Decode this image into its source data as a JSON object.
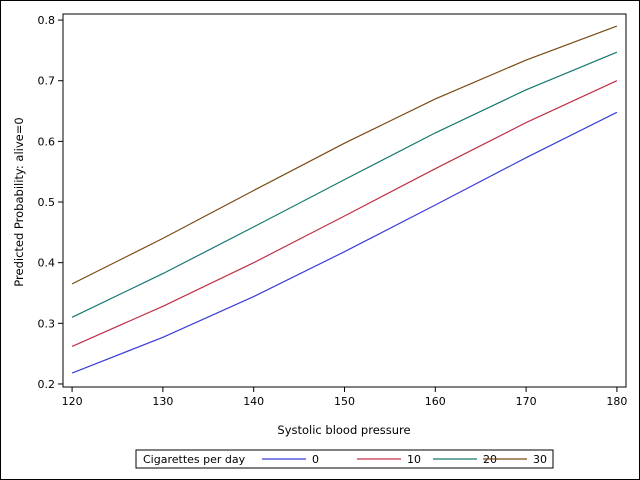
{
  "chart_data": {
    "type": "line",
    "title": "",
    "xlabel": "Systolic blood pressure",
    "ylabel": "Predicted Probability: alive=0",
    "xlim": [
      119,
      181
    ],
    "ylim": [
      0.195,
      0.81
    ],
    "xticks": [
      "120",
      "130",
      "140",
      "150",
      "160",
      "170",
      "180"
    ],
    "yticks": [
      "0.2",
      "0.3",
      "0.4",
      "0.5",
      "0.6",
      "0.7",
      "0.8"
    ],
    "grid": false,
    "legend": {
      "title": "Cigarettes per day",
      "position": "bottom"
    },
    "x": [
      120,
      130,
      140,
      150,
      160,
      170,
      180
    ],
    "series": [
      {
        "name": "0",
        "color": "#3c3cd8",
        "values": [
          0.218,
          0.277,
          0.344,
          0.418,
          0.495,
          0.573,
          0.648
        ]
      },
      {
        "name": "10",
        "color": "#c0304a",
        "values": [
          0.262,
          0.328,
          0.4,
          0.477,
          0.555,
          0.631,
          0.7
        ]
      },
      {
        "name": "20",
        "color": "#14786e",
        "values": [
          0.31,
          0.382,
          0.459,
          0.537,
          0.614,
          0.685,
          0.747
        ]
      },
      {
        "name": "30",
        "color": "#7a4a14",
        "values": [
          0.365,
          0.44,
          0.519,
          0.597,
          0.67,
          0.734,
          0.79
        ]
      }
    ]
  }
}
